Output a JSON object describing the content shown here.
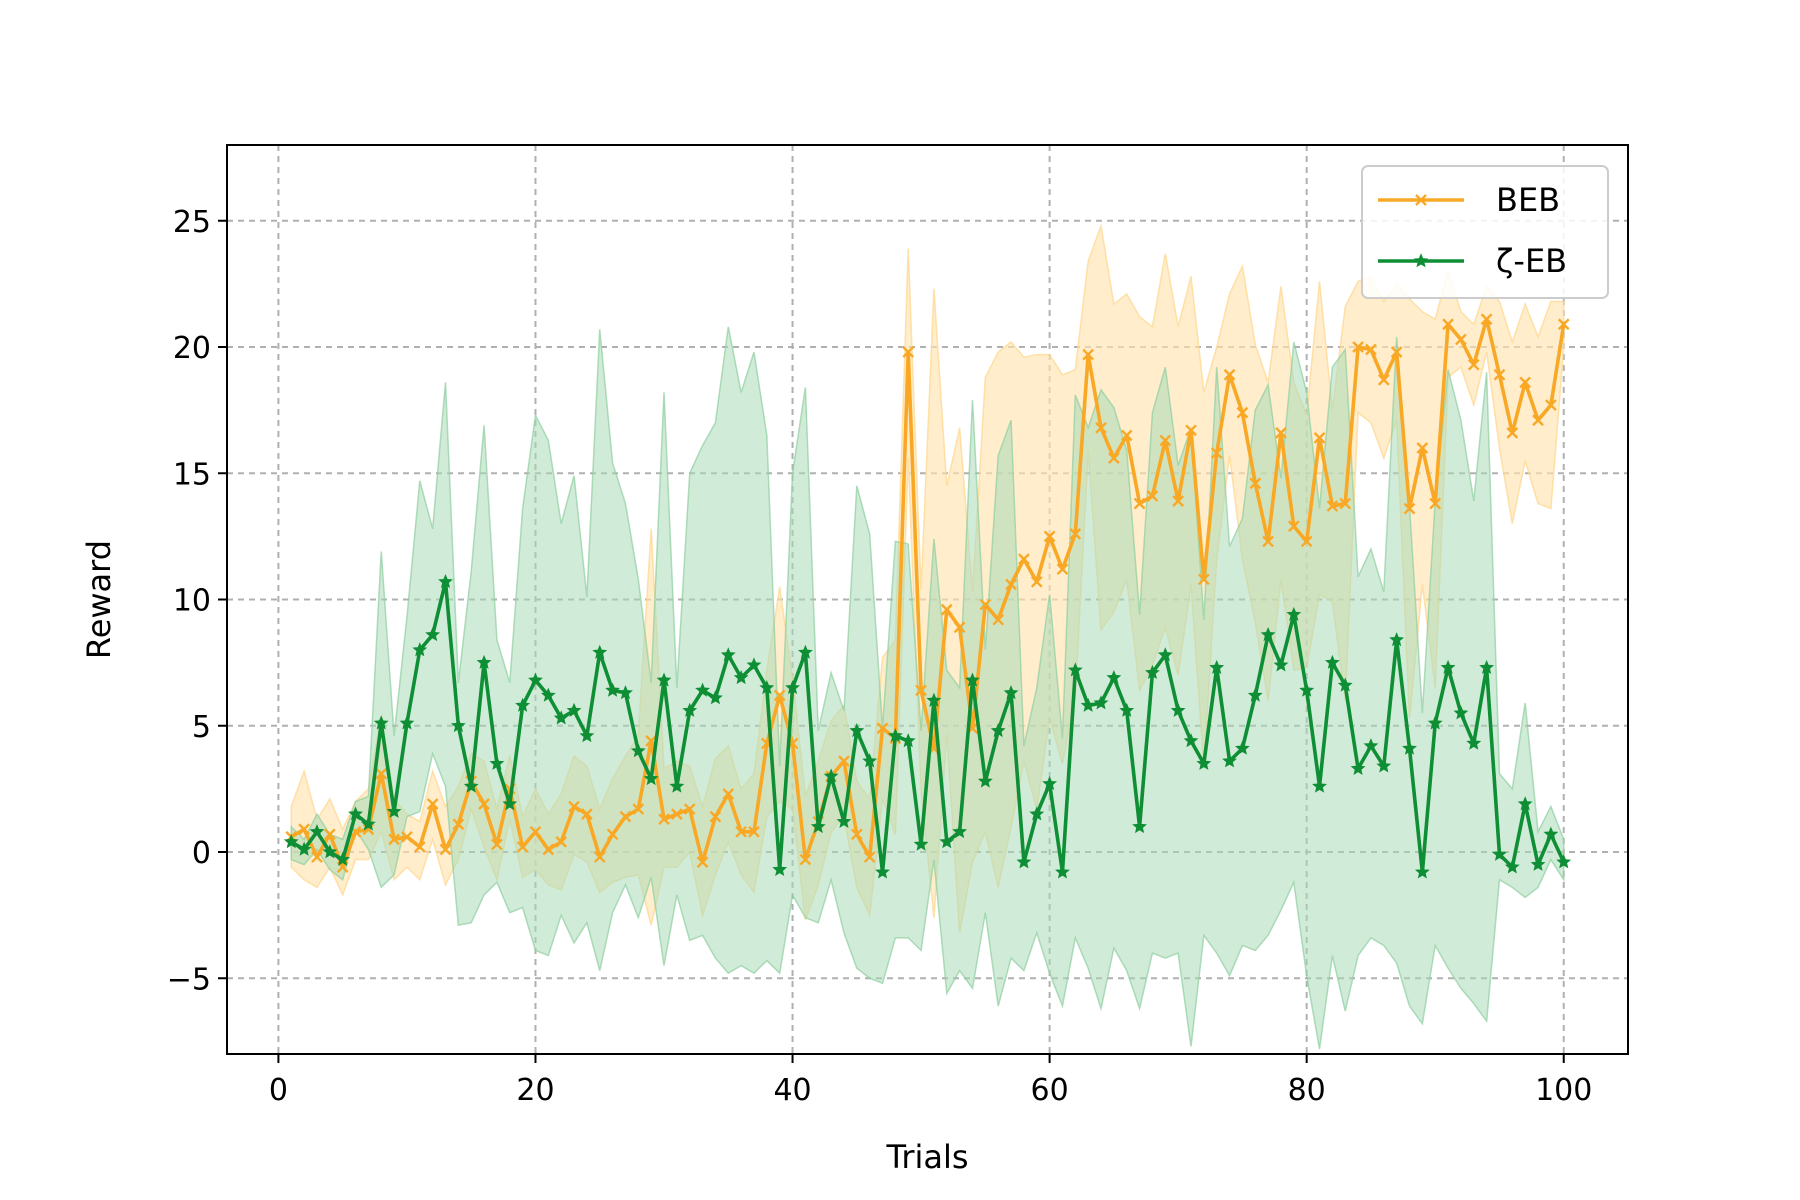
{
  "chart_data": {
    "type": "line",
    "title": "",
    "xlabel": "Trials",
    "ylabel": "Reward",
    "xlim": [
      -4,
      105
    ],
    "ylim": [
      -8,
      28
    ],
    "xticks": [
      0,
      20,
      40,
      60,
      80,
      100
    ],
    "yticks": [
      -5,
      0,
      5,
      10,
      15,
      20,
      25
    ],
    "ytick_labels": [
      "−5",
      "0",
      "5",
      "10",
      "15",
      "20",
      "25"
    ],
    "grid": true,
    "legend_position": "top-right",
    "x": [
      1,
      2,
      3,
      4,
      5,
      6,
      7,
      8,
      9,
      10,
      11,
      12,
      13,
      14,
      15,
      16,
      17,
      18,
      19,
      20,
      21,
      22,
      23,
      24,
      25,
      26,
      27,
      28,
      29,
      30,
      31,
      32,
      33,
      34,
      35,
      36,
      37,
      38,
      39,
      40,
      41,
      42,
      43,
      44,
      45,
      46,
      47,
      48,
      49,
      50,
      51,
      52,
      53,
      54,
      55,
      56,
      57,
      58,
      59,
      60,
      61,
      62,
      63,
      64,
      65,
      66,
      67,
      68,
      69,
      70,
      71,
      72,
      73,
      74,
      75,
      76,
      77,
      78,
      79,
      80,
      81,
      82,
      83,
      84,
      85,
      86,
      87,
      88,
      89,
      90,
      91,
      92,
      93,
      94,
      95,
      96,
      97,
      98,
      99,
      100
    ],
    "series": [
      {
        "name": "BEB",
        "color": "#f9a825",
        "marker": "x",
        "values": [
          0.6,
          0.9,
          -0.2,
          0.7,
          -0.6,
          0.8,
          0.9,
          3.1,
          0.5,
          0.6,
          0.2,
          1.9,
          0.1,
          1.1,
          2.8,
          1.9,
          0.3,
          2.5,
          0.2,
          0.8,
          0.1,
          0.4,
          1.8,
          1.5,
          -0.2,
          0.7,
          1.4,
          1.7,
          4.4,
          1.3,
          1.5,
          1.7,
          -0.4,
          1.4,
          2.3,
          0.8,
          0.8,
          4.3,
          6.2,
          4.3,
          -0.3,
          1.2,
          3.0,
          3.6,
          0.7,
          -0.2,
          4.9,
          4.5,
          19.8,
          6.4,
          4.1,
          9.6,
          8.9,
          4.9,
          9.8,
          9.2,
          10.6,
          11.6,
          10.7,
          12.5,
          11.2,
          12.6,
          19.7,
          16.8,
          15.6,
          16.5,
          13.8,
          14.1,
          16.3,
          13.9,
          16.7,
          10.8,
          15.8,
          18.9,
          17.4,
          14.6,
          12.3,
          16.6,
          12.9,
          12.3,
          16.4,
          13.7,
          13.8,
          20.0,
          19.9,
          18.7,
          19.8,
          13.6,
          16.0,
          13.8,
          20.9,
          20.3,
          19.3,
          21.1,
          18.9,
          16.6,
          18.6,
          17.1,
          17.7,
          20.9
        ],
        "upper": [
          1.8,
          3.2,
          1.3,
          2.1,
          0.9,
          2.0,
          2.5,
          5.4,
          2.1,
          1.5,
          1.2,
          3.2,
          1.8,
          2.6,
          3.9,
          3.6,
          1.7,
          3.8,
          1.4,
          2.5,
          1.5,
          2.3,
          3.8,
          3.4,
          1.7,
          2.9,
          3.8,
          4.6,
          12.8,
          3.3,
          3.6,
          3.4,
          1.8,
          3.7,
          4.2,
          2.5,
          3.1,
          7.2,
          10.5,
          6.9,
          2.2,
          3.6,
          5.2,
          5.8,
          2.8,
          2.1,
          7.7,
          8.4,
          23.9,
          10.4,
          22.3,
          14.5,
          16.8,
          10.3,
          18.8,
          19.8,
          20.2,
          19.6,
          19.7,
          19.7,
          18.9,
          19.1,
          23.4,
          24.8,
          21.7,
          22.1,
          21.2,
          20.8,
          23.7,
          20.8,
          22.8,
          18.2,
          20.0,
          22.1,
          23.2,
          20.1,
          18.6,
          22.4,
          18.6,
          17.3,
          22.6,
          17.5,
          21.6,
          22.6,
          22.8,
          21.8,
          22.5,
          21.9,
          21.4,
          21.1,
          23.0,
          21.4,
          20.9,
          22.4,
          21.8,
          20.2,
          21.7,
          20.4,
          21.8,
          21.8
        ],
        "lower": [
          -0.6,
          -1.1,
          -1.4,
          -0.6,
          -1.7,
          -0.3,
          -0.3,
          0.8,
          -1.1,
          -0.6,
          -1.1,
          0.5,
          -1.3,
          -0.3,
          1.7,
          0.2,
          -1.1,
          1.3,
          -1.0,
          -0.7,
          -1.3,
          -1.5,
          -0.1,
          -0.4,
          -1.6,
          -1.2,
          -1.0,
          -0.9,
          -2.9,
          -0.6,
          -0.6,
          0.0,
          -2.5,
          -0.9,
          0.4,
          -0.9,
          -1.6,
          1.4,
          2.0,
          1.7,
          -2.7,
          -1.3,
          0.8,
          1.4,
          -1.4,
          -2.5,
          2.1,
          0.7,
          15.6,
          2.4,
          -2.6,
          4.7,
          -3.2,
          -0.4,
          0.8,
          -1.4,
          1.0,
          3.6,
          1.7,
          5.3,
          3.5,
          6.2,
          15.9,
          8.8,
          9.5,
          10.8,
          6.4,
          7.4,
          8.9,
          7.0,
          10.6,
          3.4,
          11.6,
          15.7,
          11.6,
          9.1,
          6.0,
          10.8,
          7.2,
          7.3,
          10.2,
          9.9,
          6.0,
          17.4,
          17.0,
          15.6,
          17.1,
          5.3,
          10.6,
          6.5,
          18.8,
          19.2,
          17.7,
          19.8,
          16.0,
          13.0,
          15.5,
          13.8,
          13.6,
          20.0
        ]
      },
      {
        "name": "ζ-EB",
        "color": "#0f8f35",
        "marker": "*",
        "values": [
          0.4,
          0.1,
          0.8,
          0.0,
          -0.3,
          1.5,
          1.1,
          5.1,
          1.6,
          5.1,
          8.0,
          8.6,
          10.7,
          5.0,
          2.6,
          7.5,
          3.5,
          1.9,
          5.8,
          6.8,
          6.2,
          5.3,
          5.6,
          4.6,
          7.9,
          6.4,
          6.3,
          4.0,
          2.9,
          6.8,
          2.6,
          5.6,
          6.4,
          6.1,
          7.8,
          6.9,
          7.4,
          6.5,
          -0.7,
          6.5,
          7.9,
          1.0,
          3.0,
          1.2,
          4.8,
          3.6,
          -0.8,
          4.6,
          4.4,
          0.3,
          6.0,
          0.4,
          0.8,
          6.8,
          2.8,
          4.8,
          6.3,
          -0.4,
          1.5,
          2.7,
          -0.8,
          7.2,
          5.8,
          5.9,
          6.9,
          5.6,
          1.0,
          7.1,
          7.8,
          5.6,
          4.4,
          3.5,
          7.3,
          3.6,
          4.1,
          6.2,
          8.6,
          7.4,
          9.4,
          6.4,
          2.6,
          7.5,
          6.6,
          3.3,
          4.2,
          3.4,
          8.4,
          4.1,
          -0.8,
          5.1,
          7.3,
          5.5,
          4.3,
          7.3,
          -0.1,
          -0.6,
          1.9,
          -0.5,
          0.7,
          -0.4
        ],
        "upper": [
          1.0,
          0.5,
          1.5,
          0.7,
          0.5,
          2.0,
          2.2,
          11.9,
          4.6,
          9.3,
          14.7,
          12.8,
          18.6,
          6.7,
          11.1,
          16.9,
          8.4,
          6.7,
          13.6,
          17.3,
          16.3,
          13.0,
          14.9,
          10.1,
          20.7,
          15.4,
          13.8,
          10.8,
          6.7,
          18.2,
          6.5,
          15.0,
          16.1,
          17.0,
          20.8,
          18.2,
          19.8,
          16.5,
          3.4,
          15.0,
          18.4,
          4.8,
          7.1,
          5.6,
          14.5,
          12.6,
          4.9,
          12.3,
          12.2,
          4.8,
          12.4,
          7.2,
          6.5,
          17.9,
          8.0,
          15.7,
          17.1,
          4.2,
          6.5,
          10.2,
          4.5,
          18.1,
          16.8,
          18.3,
          17.6,
          15.9,
          9.4,
          17.4,
          19.2,
          15.3,
          16.8,
          9.2,
          19.2,
          12.1,
          13.2,
          17.5,
          18.5,
          14.8,
          20.2,
          18.2,
          13.6,
          19.2,
          19.9,
          10.9,
          12.0,
          10.3,
          20.4,
          13.7,
          5.5,
          13.9,
          19.1,
          17.1,
          13.9,
          19.0,
          3.1,
          2.5,
          5.9,
          0.8,
          1.8,
          0.5
        ],
        "lower": [
          -0.3,
          -0.5,
          0.1,
          -0.7,
          -1.1,
          0.9,
          0.1,
          -1.4,
          -0.9,
          1.4,
          1.6,
          3.9,
          2.6,
          -2.9,
          -2.8,
          -1.7,
          -1.2,
          -2.4,
          -2.2,
          -3.9,
          -4.1,
          -2.5,
          -3.6,
          -2.8,
          -4.7,
          -2.4,
          -1.3,
          -2.6,
          -1.0,
          -4.5,
          -1.7,
          -3.5,
          -3.3,
          -4.2,
          -4.8,
          -4.5,
          -4.8,
          -4.3,
          -4.8,
          -1.7,
          -2.6,
          -2.8,
          -1.1,
          -3.2,
          -4.6,
          -5.0,
          -5.2,
          -3.4,
          -3.4,
          -3.9,
          -0.3,
          -5.6,
          -4.7,
          -5.4,
          -2.4,
          -6.1,
          -4.2,
          -4.7,
          -3.2,
          -4.8,
          -6.1,
          -3.4,
          -4.6,
          -6.2,
          -3.8,
          -4.7,
          -6.2,
          -4.0,
          -4.2,
          -4.0,
          -7.7,
          -3.3,
          -4.0,
          -4.9,
          -3.7,
          -3.9,
          -3.3,
          -2.3,
          -1.2,
          -4.9,
          -7.8,
          -4.1,
          -6.3,
          -4.1,
          -3.4,
          -3.7,
          -4.4,
          -6.1,
          -6.8,
          -3.7,
          -4.6,
          -5.4,
          -6.0,
          -6.7,
          -1.1,
          -1.4,
          -1.8,
          -1.4,
          -0.3,
          -1.1
        ]
      }
    ]
  }
}
